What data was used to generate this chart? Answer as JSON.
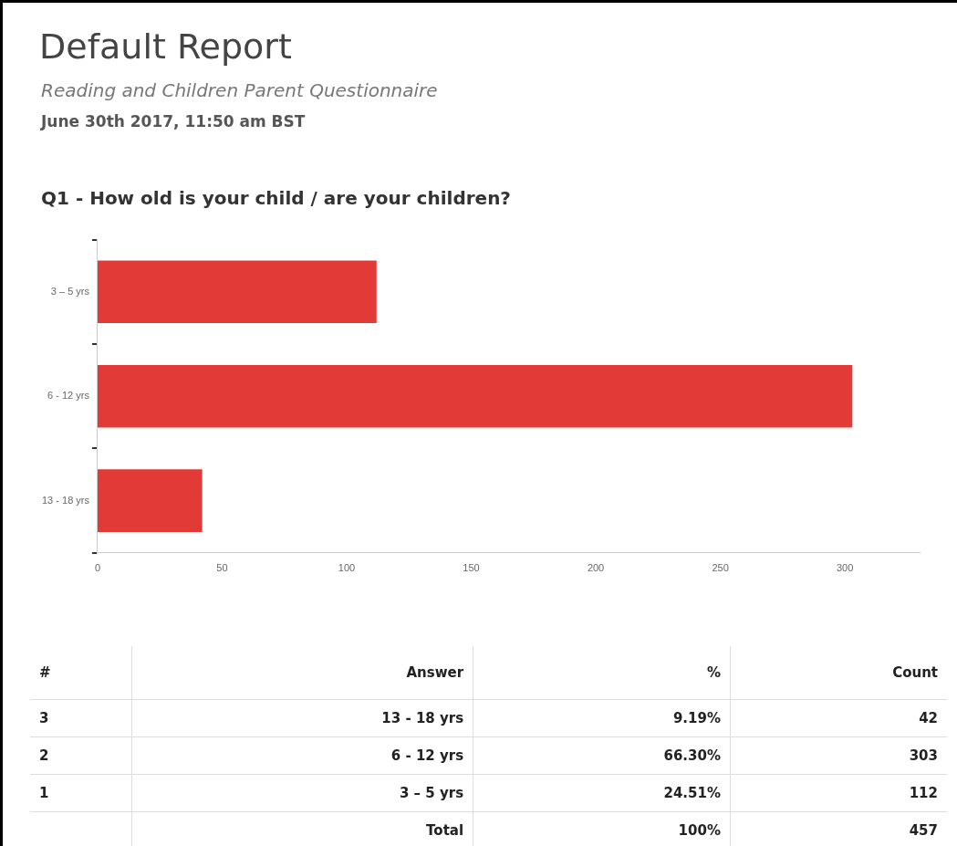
{
  "chart_data": {
    "type": "bar",
    "orientation": "horizontal",
    "title": "Default Report",
    "subtitle": "Reading and Children Parent Questionnaire",
    "annotations": [
      "June 30th 2017, 11:50 am BST",
      "Q1 - How old is your child / are your children?",
      "#",
      "Answer",
      "%",
      "Count",
      "3",
      "13 - 18 yrs",
      "9.19%",
      "42",
      "2",
      "6 - 12 yrs",
      "66.30%",
      "303",
      "1",
      "3 – 5 yrs",
      "24.51%",
      "112",
      "Total",
      "100%",
      "457"
    ],
    "categories": [
      "3 – 5 yrs",
      "6 - 12 yrs",
      "13 - 18 yrs"
    ],
    "values": [
      112,
      303,
      42
    ],
    "color": "#e23a36",
    "xlim": [
      0,
      330
    ],
    "xticks": [
      0,
      50,
      100,
      150,
      200,
      250,
      300
    ],
    "grid": false,
    "legend": false
  }
}
